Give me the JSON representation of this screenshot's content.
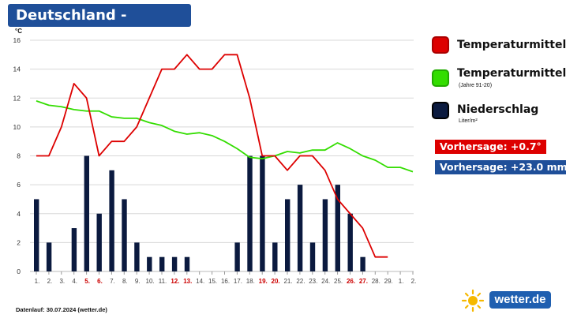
{
  "title": "Deutschland - Oktober",
  "legend": {
    "temp": "Temperaturmittel",
    "temp_ref": "Temperaturmittel",
    "temp_ref_sub": "(Jahre 91-20)",
    "precip": "Niederschlag",
    "precip_unit": "Liter/m²"
  },
  "forecast": {
    "temp": "Vorhersage: +0.7°",
    "precip": "Vorhersage: +23.0 mm"
  },
  "footer": "Datenlauf: 30.07.2024 (wetter.de)",
  "logo": "wetter.de",
  "colors": {
    "temp": "#dd0000",
    "temp_ref": "#33dd00",
    "precip": "#0b1a3f",
    "weekend": "#cc0000",
    "title_bg": "#1f4f99",
    "forecast_temp_bg": "#dd0000",
    "forecast_precip_bg": "#1f4f99",
    "grid": "#d8d8d8"
  },
  "icons": {
    "logo": "sun-icon"
  },
  "chart_data": {
    "type": "bar+line",
    "ylabel": "°C",
    "ylim": [
      0,
      16
    ],
    "yticks": [
      0,
      2,
      4,
      6,
      8,
      10,
      12,
      14,
      16
    ],
    "grid": true,
    "legend_position": "right",
    "x": [
      "1.",
      "2.",
      "3.",
      "4.",
      "5.",
      "6.",
      "7.",
      "8.",
      "9.",
      "10.",
      "11.",
      "12.",
      "13.",
      "14.",
      "15.",
      "16.",
      "17.",
      "18.",
      "19.",
      "20.",
      "21.",
      "22.",
      "23.",
      "24.",
      "25.",
      "26.",
      "27.",
      "28.",
      "29.",
      "1.",
      "2."
    ],
    "weekend_labels": [
      "5.",
      "6.",
      "12.",
      "13.",
      "19.",
      "20.",
      "26.",
      "27."
    ],
    "series": [
      {
        "name": "Niederschlag",
        "type": "bar",
        "values": [
          5,
          2,
          0,
          3,
          8,
          4,
          7,
          5,
          2,
          1,
          1,
          1,
          1,
          0,
          0,
          0,
          2,
          8,
          8,
          2,
          5,
          6,
          2,
          5,
          6,
          4,
          1,
          0,
          0,
          null,
          null
        ]
      },
      {
        "name": "Temperaturmittel",
        "type": "line",
        "values": [
          8,
          8,
          10,
          13,
          12,
          8,
          9,
          9,
          10,
          12,
          14,
          14,
          15,
          14,
          14,
          15,
          15,
          12,
          8,
          8,
          7,
          8,
          8,
          7,
          5,
          4,
          3,
          1,
          1,
          null,
          null
        ]
      },
      {
        "name": "Temperaturmittel (Jahre 91-20)",
        "type": "line",
        "values": [
          11.8,
          11.5,
          11.4,
          11.2,
          11.1,
          11.1,
          10.7,
          10.6,
          10.6,
          10.3,
          10.1,
          9.7,
          9.5,
          9.6,
          9.4,
          9.0,
          8.5,
          7.9,
          7.8,
          8.0,
          8.3,
          8.2,
          8.4,
          8.4,
          8.9,
          8.5,
          8.0,
          7.7,
          7.2,
          7.2,
          6.9
        ]
      }
    ]
  }
}
